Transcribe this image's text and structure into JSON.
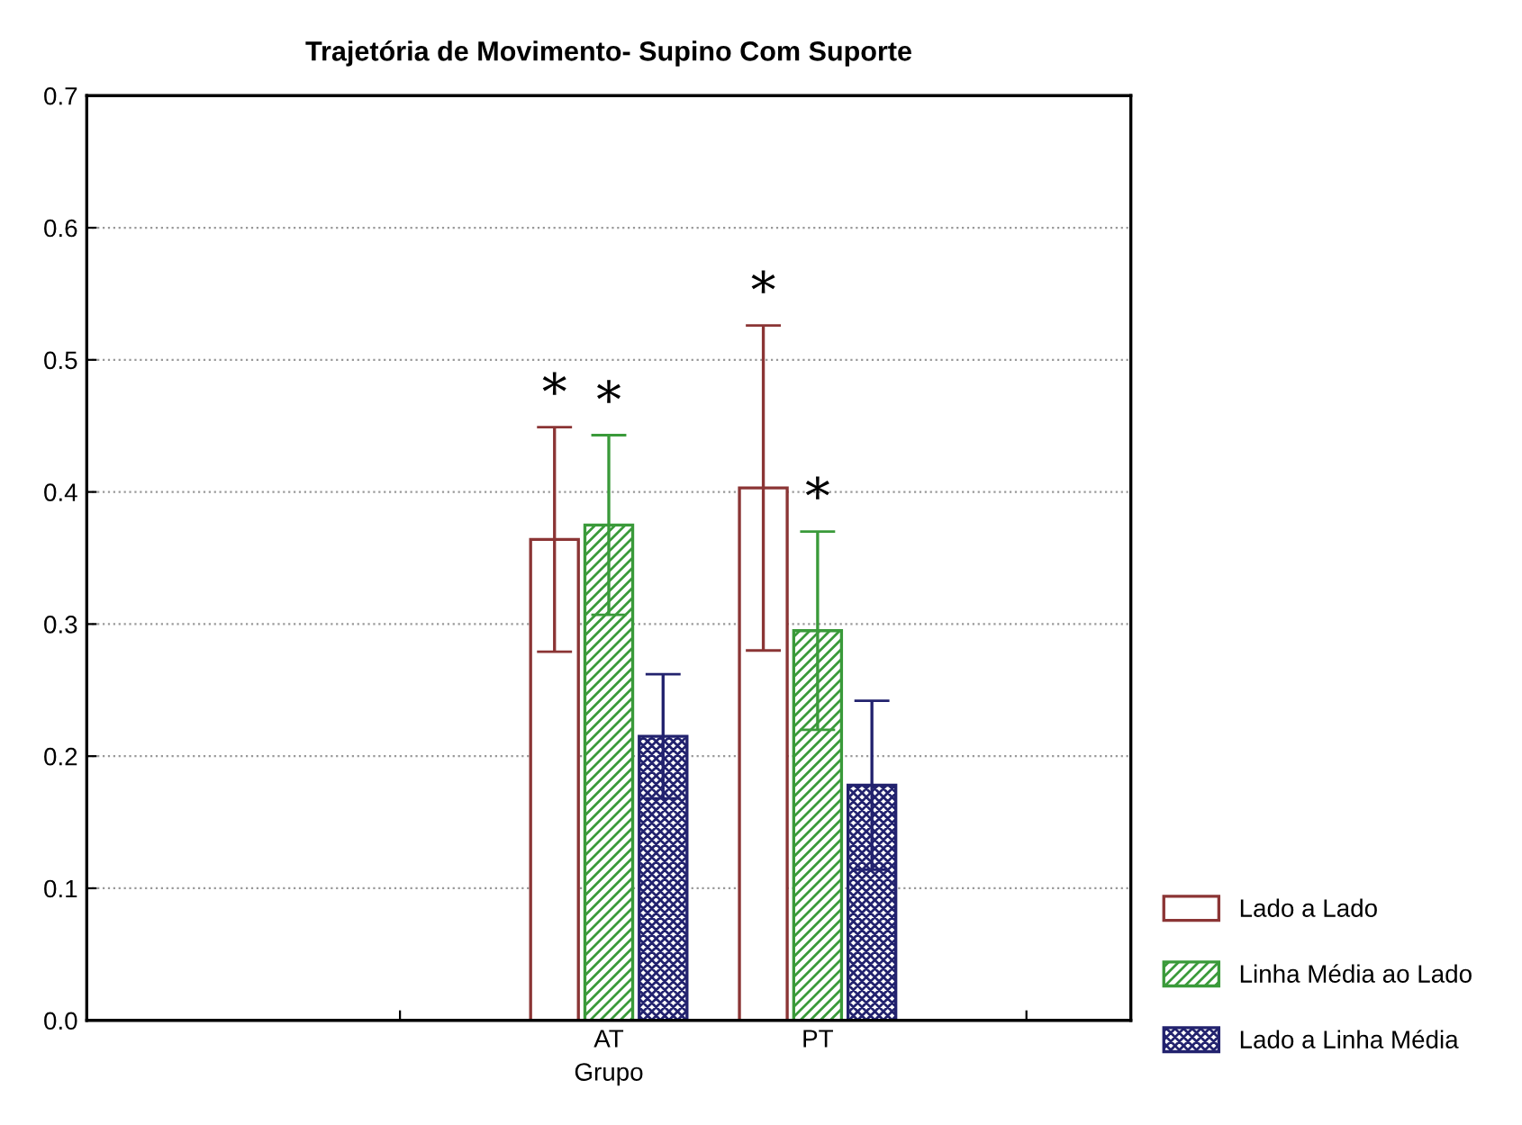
{
  "chart_data": {
    "type": "bar",
    "title": "Trajetória de Movimento- Supino Com Suporte",
    "xlabel": "Grupo",
    "categories": [
      null,
      "AT",
      "PT",
      null
    ],
    "series": [
      {
        "name": "Lado a Lado",
        "color": "#8b3535",
        "values": [
          null,
          0.364,
          0.403,
          null
        ],
        "errors": [
          null,
          0.085,
          0.123,
          null
        ]
      },
      {
        "name": "Linha Média ao Lado",
        "color": "#3a9a3a",
        "values": [
          null,
          0.375,
          0.295,
          null
        ],
        "errors": [
          null,
          0.068,
          0.075,
          null
        ]
      },
      {
        "name": "Lado a Linha Média",
        "color": "#22226e",
        "values": [
          null,
          0.215,
          0.178,
          null
        ],
        "errors": [
          null,
          0.047,
          0.064,
          null
        ]
      }
    ],
    "ylim": [
      0,
      0.7
    ],
    "yticks": [
      {
        "value": 0,
        "label": "0.0"
      },
      0.1,
      0.2,
      0.3,
      0.4,
      0.5,
      0.6,
      0.7
    ],
    "grid": "y",
    "legend": "bottom right",
    "annotations": [
      "*",
      "*",
      "*",
      "*"
    ]
  }
}
